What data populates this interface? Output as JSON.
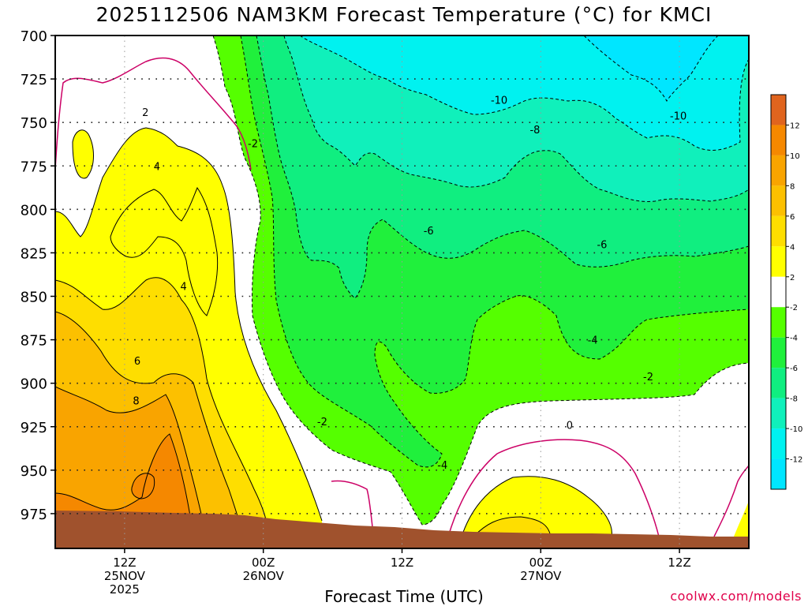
{
  "title": "2025112506 NAM3KM Forecast Temperature (°C) for KMCI",
  "credit": "coolwx.com/models",
  "chart_data": {
    "type": "contour",
    "title": "2025112506 NAM3KM Forecast Temperature (°C) for KMCI",
    "xlabel": "Forecast Time (UTC)",
    "ylabel": "",
    "grid": true,
    "legend": "colorbar-right",
    "y_ticks": [
      700,
      725,
      750,
      775,
      800,
      825,
      850,
      875,
      900,
      925,
      950,
      975
    ],
    "ylim": [
      700,
      995
    ],
    "x_ticks": [
      {
        "line1": "12Z",
        "line2": "25NOV",
        "line3": "2025"
      },
      {
        "line1": "00Z",
        "line2": "26NOV",
        "line3": ""
      },
      {
        "line1": "12Z",
        "line2": "",
        "line3": ""
      },
      {
        "line1": "00Z",
        "line2": "27NOV",
        "line3": ""
      },
      {
        "line1": "12Z",
        "line2": "",
        "line3": ""
      }
    ],
    "x_tick_hours": [
      6,
      18,
      30,
      42,
      54
    ],
    "xlim": [
      0,
      60
    ],
    "contour_labels": [
      {
        "text": "2",
        "x": 7.8,
        "p": 744
      },
      {
        "text": "4",
        "x": 8.8,
        "p": 775
      },
      {
        "text": "4",
        "x": 11.1,
        "p": 844
      },
      {
        "text": "6",
        "x": 7.1,
        "p": 887
      },
      {
        "text": "8",
        "x": 7.0,
        "p": 910
      },
      {
        "text": "-2",
        "x": 17.1,
        "p": 762
      },
      {
        "text": "-2",
        "x": 23.1,
        "p": 922
      },
      {
        "text": "-10",
        "x": 38.4,
        "p": 737
      },
      {
        "text": "-10",
        "x": 53.9,
        "p": 746
      },
      {
        "text": "-8",
        "x": 41.5,
        "p": 754
      },
      {
        "text": "-6",
        "x": 32.3,
        "p": 812
      },
      {
        "text": "-6",
        "x": 47.3,
        "p": 820
      },
      {
        "text": "-4",
        "x": 33.5,
        "p": 947
      },
      {
        "text": "-4",
        "x": 46.5,
        "p": 875
      },
      {
        "text": "-2",
        "x": 51.3,
        "p": 896
      },
      {
        "text": "0",
        "x": 44.5,
        "p": 924
      }
    ],
    "colorbar": {
      "labels": [
        "12",
        "10",
        "8",
        "6",
        "4",
        "2",
        "-2",
        "-4",
        "-6",
        "-8",
        "-10",
        "-12"
      ],
      "colors": [
        "#e0641e",
        "#f58800",
        "#f9a400",
        "#fcc000",
        "#fede00",
        "#ffff00",
        "#ffffff",
        "#55ff00",
        "#20f03c",
        "#10ee80",
        "#10f0bb",
        "#00f2f0",
        "#00e6ff"
      ]
    },
    "colors": {
      "ground": "#a0522d",
      "zero_line": "#cc0066",
      "frame": "#000000",
      "cold": "#00e6ff",
      "warm": "#fede00"
    }
  }
}
